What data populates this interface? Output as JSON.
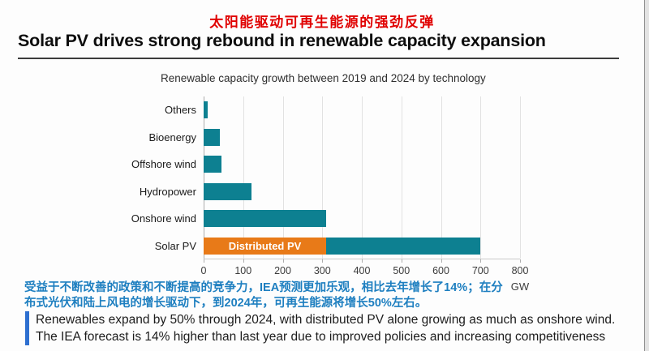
{
  "header": {
    "zh_title": "太阳能驱动可再生能源的强劲反弹",
    "title": "Solar PV drives strong rebound in renewable capacity expansion"
  },
  "chart_data": {
    "type": "bar",
    "orientation": "horizontal",
    "title": "Renewable capacity growth between 2019 and 2024 by technology",
    "unit": "GW",
    "xlabel": "GW",
    "xlim": [
      0,
      800
    ],
    "xticks": [
      0,
      100,
      200,
      300,
      400,
      500,
      600,
      700,
      800
    ],
    "grid": true,
    "categories": [
      "Others",
      "Bioenergy",
      "Offshore wind",
      "Hydropower",
      "Onshore wind",
      "Solar PV"
    ],
    "rows": [
      {
        "label": "Others",
        "total": 10,
        "segments": [
          {
            "value": 10,
            "color": "teal"
          }
        ]
      },
      {
        "label": "Bioenergy",
        "total": 40,
        "segments": [
          {
            "value": 40,
            "color": "teal"
          }
        ]
      },
      {
        "label": "Offshore wind",
        "total": 45,
        "segments": [
          {
            "value": 45,
            "color": "teal"
          }
        ]
      },
      {
        "label": "Hydropower",
        "total": 120,
        "segments": [
          {
            "value": 120,
            "color": "teal"
          }
        ]
      },
      {
        "label": "Onshore wind",
        "total": 310,
        "segments": [
          {
            "value": 310,
            "color": "teal"
          }
        ]
      },
      {
        "label": "Solar PV",
        "total": 700,
        "segments": [
          {
            "value": 310,
            "color": "orange",
            "label": "Distributed PV"
          },
          {
            "value": 390,
            "color": "teal"
          }
        ]
      }
    ]
  },
  "annotations": {
    "zh_lines": [
      "受益于不断改善的政策和不断提高的竞争力，IEA预测更加乐观，相比去年增长了14%；在分",
      "布式光伏和陆上风电的增长驱动下，到2024年，可再生能源将增长50%左右。"
    ],
    "en_lines": [
      "Renewables expand by 50% through 2024, with distributed PV alone growing as much as onshore wind.",
      "The IEA forecast is 14% higher than last year due to improved policies and increasing competitiveness"
    ]
  },
  "colors": {
    "teal": "#0d8091",
    "orange": "#e87a18",
    "title_red": "#e00000",
    "annotation_blue": "#1e7fc0",
    "quote_bar_blue": "#2e6fd0"
  }
}
